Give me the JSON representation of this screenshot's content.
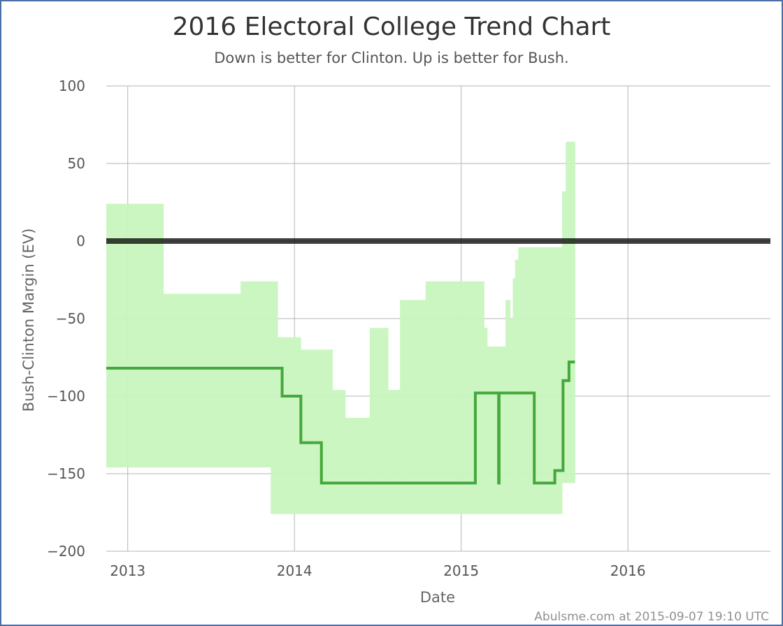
{
  "chart_data": {
    "type": "line",
    "title": "2016 Electoral College Trend Chart",
    "subtitle": "Down is better for Clinton. Up is better for Bush.",
    "xlabel": "Date",
    "ylabel": "Bush-Clinton Margin (EV)",
    "credit": "Abulsme.com at 2015-09-07 19:10 UTC",
    "xlim": [
      "2012-11-15",
      "2016-11-08"
    ],
    "ylim": [
      -200,
      100
    ],
    "x_ticks": [
      {
        "date": "2013-01-01",
        "label": "2013"
      },
      {
        "date": "2014-01-01",
        "label": "2014"
      },
      {
        "date": "2015-01-01",
        "label": "2015"
      },
      {
        "date": "2016-01-01",
        "label": "2016"
      }
    ],
    "y_ticks": [
      {
        "value": 100,
        "label": "100"
      },
      {
        "value": 50,
        "label": "50"
      },
      {
        "value": 0,
        "label": "0"
      },
      {
        "value": -50,
        "label": "−50"
      },
      {
        "value": -100,
        "label": "−100"
      },
      {
        "value": -150,
        "label": "−150"
      },
      {
        "value": -200,
        "label": "−200"
      }
    ],
    "grid": true,
    "zero_line": 0,
    "colors": {
      "band": "#c8f5be",
      "line": "#45a83c",
      "zero": "#000000",
      "grid": "#b5b5b5",
      "frame": "#4a6fa5"
    },
    "range_band": [
      {
        "start": "2012-11-15",
        "end": "2013-03-20",
        "low": -146,
        "high": 24
      },
      {
        "start": "2013-03-20",
        "end": "2013-09-05",
        "low": -146,
        "high": -34
      },
      {
        "start": "2013-09-05",
        "end": "2013-11-10",
        "low": -146,
        "high": -26
      },
      {
        "start": "2013-11-10",
        "end": "2013-11-25",
        "low": -176,
        "high": -26
      },
      {
        "start": "2013-11-25",
        "end": "2014-01-15",
        "low": -176,
        "high": -62
      },
      {
        "start": "2014-01-15",
        "end": "2014-03-25",
        "low": -176,
        "high": -70
      },
      {
        "start": "2014-03-25",
        "end": "2014-04-22",
        "low": -176,
        "high": -96
      },
      {
        "start": "2014-04-22",
        "end": "2014-06-15",
        "low": -176,
        "high": -114
      },
      {
        "start": "2014-06-15",
        "end": "2014-07-25",
        "low": -176,
        "high": -56
      },
      {
        "start": "2014-07-25",
        "end": "2014-08-20",
        "low": -176,
        "high": -96
      },
      {
        "start": "2014-08-20",
        "end": "2014-10-15",
        "low": -176,
        "high": -38
      },
      {
        "start": "2014-10-15",
        "end": "2015-02-20",
        "low": -176,
        "high": -26
      },
      {
        "start": "2015-02-20",
        "end": "2015-02-27",
        "low": -176,
        "high": -56
      },
      {
        "start": "2015-02-27",
        "end": "2015-04-08",
        "low": -176,
        "high": -68
      },
      {
        "start": "2015-04-08",
        "end": "2015-04-18",
        "low": -176,
        "high": -38
      },
      {
        "start": "2015-04-18",
        "end": "2015-04-24",
        "low": -176,
        "high": -50
      },
      {
        "start": "2015-04-24",
        "end": "2015-04-29",
        "low": -176,
        "high": -24
      },
      {
        "start": "2015-04-29",
        "end": "2015-05-06",
        "low": -176,
        "high": -12
      },
      {
        "start": "2015-05-06",
        "end": "2015-08-10",
        "low": -176,
        "high": -4
      },
      {
        "start": "2015-08-10",
        "end": "2015-08-18",
        "low": -156,
        "high": 32
      },
      {
        "start": "2015-08-18",
        "end": "2015-09-07",
        "low": -156,
        "high": 64
      }
    ],
    "series": [
      {
        "x": [
          "2012-11-15",
          "2013-12-05",
          "2014-01-15",
          "2014-03-01",
          "2015-02-01",
          "2015-03-24",
          "2015-03-25",
          "2015-06-10",
          "2015-07-25",
          "2015-08-12",
          "2015-08-25",
          "2015-09-07"
        ],
        "y": [
          -82,
          -100,
          -130,
          -156,
          -98,
          -156,
          -98,
          -156,
          -148,
          -90,
          -78,
          -78
        ]
      }
    ]
  }
}
